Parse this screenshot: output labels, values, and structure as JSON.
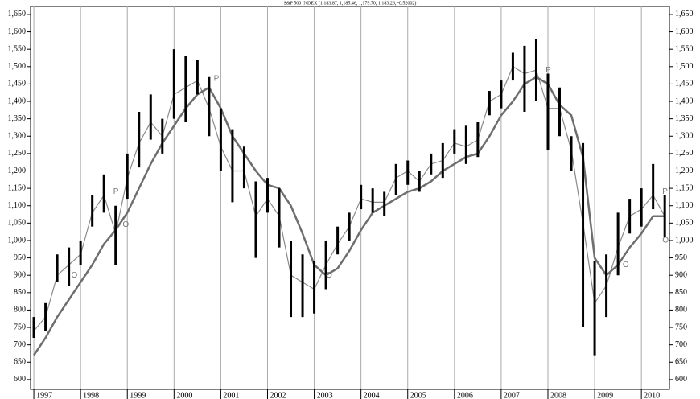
{
  "chart_data": {
    "type": "ohlc-bars",
    "title": "S&P 500 INDEX (1,183.87, 1,185.46, 1,179.70, 1,183.26, -0.52002)",
    "x": [
      1997.0,
      1997.25,
      1997.5,
      1997.75,
      1998.0,
      1998.25,
      1998.5,
      1998.75,
      1999.0,
      1999.25,
      1999.5,
      1999.75,
      2000.0,
      2000.25,
      2000.5,
      2000.75,
      2001.0,
      2001.25,
      2001.5,
      2001.75,
      2002.0,
      2002.25,
      2002.5,
      2002.75,
      2003.0,
      2003.25,
      2003.5,
      2003.75,
      2004.0,
      2004.25,
      2004.5,
      2004.75,
      2005.0,
      2005.25,
      2005.5,
      2005.75,
      2006.0,
      2006.25,
      2006.5,
      2006.75,
      2007.0,
      2007.25,
      2007.5,
      2007.75,
      2008.0,
      2008.25,
      2008.5,
      2008.75,
      2009.0,
      2009.25,
      2009.5,
      2009.75,
      2010.0,
      2010.25,
      2010.5
    ],
    "series": [
      {
        "color": "#000000",
        "values": [
          780,
          820,
          960,
          980,
          1000,
          1130,
          1190,
          1100,
          1250,
          1370,
          1420,
          1350,
          1550,
          1530,
          1520,
          1470,
          1380,
          1320,
          1270,
          1170,
          1180,
          1150,
          1000,
          960,
          940,
          1000,
          1040,
          1080,
          1160,
          1150,
          1140,
          1220,
          1230,
          1200,
          1250,
          1280,
          1320,
          1330,
          1340,
          1430,
          1460,
          1540,
          1560,
          1580,
          1480,
          1440,
          1300,
          1280,
          940,
          960,
          1080,
          1120,
          1150,
          1220,
          1130
        ]
      },
      {
        "color": "#000000",
        "values": [
          720,
          740,
          880,
          870,
          930,
          1040,
          1080,
          930,
          1120,
          1210,
          1290,
          1250,
          1350,
          1340,
          1420,
          1300,
          1200,
          1110,
          1150,
          950,
          1080,
          980,
          780,
          780,
          790,
          860,
          960,
          1000,
          1090,
          1080,
          1070,
          1130,
          1160,
          1140,
          1190,
          1180,
          1250,
          1220,
          1240,
          1360,
          1380,
          1460,
          1370,
          1400,
          1260,
          1300,
          1200,
          750,
          670,
          780,
          900,
          1020,
          1040,
          1090,
          1010
        ]
      },
      {
        "color": "#8a8a8a",
        "values": [
          740,
          780,
          900,
          930,
          960,
          1080,
          1130,
          1020,
          1180,
          1280,
          1340,
          1300,
          1420,
          1440,
          1460,
          1380,
          1270,
          1200,
          1200,
          1070,
          1120,
          1070,
          900,
          880,
          860,
          930,
          990,
          1040,
          1120,
          1110,
          1110,
          1180,
          1200,
          1170,
          1220,
          1230,
          1280,
          1270,
          1290,
          1400,
          1420,
          1500,
          1480,
          1490,
          1380,
          1380,
          1260,
          1050,
          820,
          870,
          980,
          1070,
          1090,
          1130,
          1070
        ]
      },
      {
        "color": "#6e6e6e",
        "values": [
          670,
          720,
          780,
          830,
          880,
          930,
          990,
          1030,
          1080,
          1150,
          1220,
          1280,
          1330,
          1380,
          1420,
          1440,
          1380,
          1300,
          1250,
          1200,
          1160,
          1150,
          1100,
          1020,
          930,
          900,
          920,
          970,
          1030,
          1080,
          1100,
          1120,
          1140,
          1150,
          1170,
          1200,
          1220,
          1240,
          1250,
          1300,
          1360,
          1400,
          1450,
          1470,
          1450,
          1390,
          1360,
          1240,
          950,
          900,
          930,
          980,
          1020,
          1070,
          1070
        ]
      }
    ],
    "annotations": [
      {
        "text": "O",
        "x": 1997.8,
        "y": 900
      },
      {
        "text": "P",
        "x": 1998.7,
        "y": 1140
      },
      {
        "text": "O",
        "x": 1998.9,
        "y": 1045
      },
      {
        "text": "P",
        "x": 2000.85,
        "y": 1465
      },
      {
        "text": "O",
        "x": 2003.25,
        "y": 900
      },
      {
        "text": "P",
        "x": 2007.95,
        "y": 1490
      },
      {
        "text": "O",
        "x": 2009.6,
        "y": 930
      },
      {
        "text": "P",
        "x": 2010.45,
        "y": 1140
      },
      {
        "text": "O",
        "x": 2010.45,
        "y": 1000
      }
    ],
    "xlim": [
      1996.93,
      2010.6
    ],
    "xticks": [
      1997,
      1998,
      1999,
      2000,
      2001,
      2002,
      2003,
      2004,
      2005,
      2006,
      2007,
      2008,
      2009,
      2010
    ],
    "ylim": [
      572,
      1673
    ],
    "yticks": [
      600,
      650,
      700,
      750,
      800,
      850,
      900,
      950,
      {
        "value": 1000,
        "label": "1,000"
      },
      {
        "value": 1050,
        "label": "1,050"
      },
      {
        "value": 1100,
        "label": "1,100"
      },
      {
        "value": 1150,
        "label": "1,150"
      },
      {
        "value": 1200,
        "label": "1,200"
      },
      {
        "value": 1250,
        "label": "1,250"
      },
      {
        "value": 1300,
        "label": "1,300"
      },
      {
        "value": 1350,
        "label": "1,350"
      },
      {
        "value": 1400,
        "label": "1,400"
      },
      {
        "value": 1450,
        "label": "1,450"
      },
      {
        "value": 1500,
        "label": "1,500"
      },
      {
        "value": 1550,
        "label": "1,550"
      },
      {
        "value": 1600,
        "label": "1,600"
      },
      {
        "value": 1650,
        "label": "1,650"
      }
    ],
    "grid": true
  }
}
